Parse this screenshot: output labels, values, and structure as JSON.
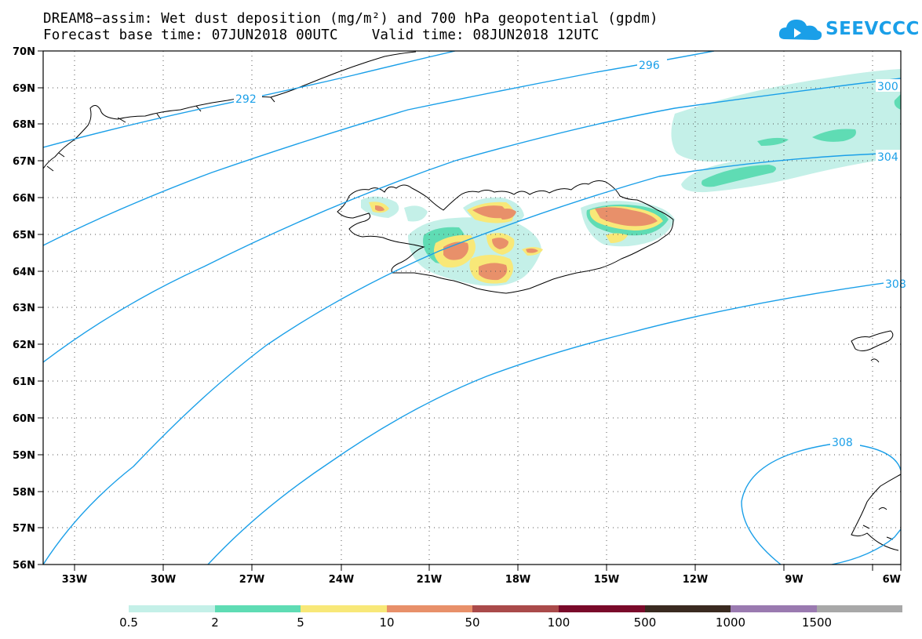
{
  "title_line1": "DREAM8−assim: Wet dust deposition (mg/m²) and 700 hPa geopotential (gpdm)",
  "title_line2": "Forecast base time: 07JUN2018 00UTC    Valid time: 08JUN2018 12UTC",
  "logo_text": "SEEVCCC",
  "lat_labels": [
    "70N",
    "69N",
    "68N",
    "67N",
    "66N",
    "65N",
    "64N",
    "63N",
    "62N",
    "61N",
    "60N",
    "59N",
    "58N",
    "57N",
    "56N"
  ],
  "lon_labels": [
    "33W",
    "30W",
    "27W",
    "24W",
    "21W",
    "18W",
    "15W",
    "12W",
    "9W",
    "6W"
  ],
  "contour_labels": [
    "292",
    "296",
    "300",
    "304",
    "308",
    "308"
  ],
  "colorbar": {
    "labels": [
      "0.5",
      "2",
      "5",
      "10",
      "50",
      "100",
      "500",
      "1000",
      "1500"
    ],
    "colors": [
      "#c4f0e8",
      "#5fdcb4",
      "#f8e878",
      "#e8906a",
      "#aa4a4a",
      "#7a0a2a",
      "#3a2a20",
      "#9a7ab0",
      "#a8a8a8"
    ]
  },
  "colors": {
    "contour": "#1a9fe8",
    "coast": "#000000",
    "grid": "#555555"
  }
}
